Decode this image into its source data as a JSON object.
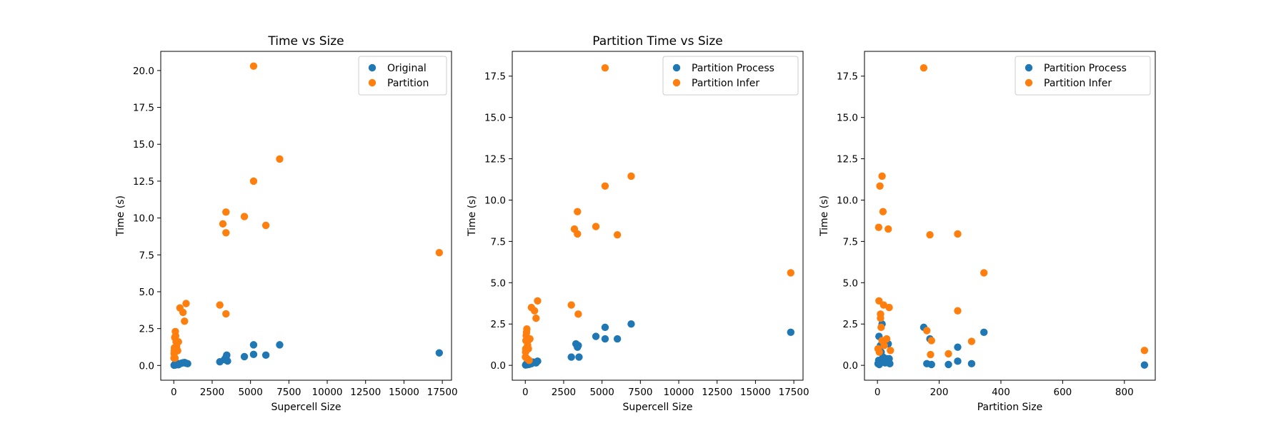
{
  "colors": {
    "blue": "#1f77b4",
    "orange": "#ff7f0e"
  },
  "chart_data": [
    {
      "type": "scatter",
      "title": "Time vs Size",
      "xlabel": "Supercell Size",
      "ylabel": "Time (s)",
      "xlim": [
        -850,
        18100
      ],
      "ylim": [
        -1.0,
        21.3
      ],
      "xticks": [
        0,
        2500,
        5000,
        7500,
        10000,
        12500,
        15000,
        17500
      ],
      "xtick_labels": [
        "0",
        "2500",
        "5000",
        "7500",
        "10000",
        "12500",
        "15000",
        "17500"
      ],
      "yticks": [
        0.0,
        2.5,
        5.0,
        7.5,
        10.0,
        12.5,
        15.0,
        17.5,
        20.0
      ],
      "ytick_labels": [
        "0.0",
        "2.5",
        "5.0",
        "7.5",
        "10.0",
        "12.5",
        "15.0",
        "17.5",
        "20.0"
      ],
      "legend": "top-right",
      "series": [
        {
          "name": "Original",
          "color": "#1f77b4",
          "points": [
            [
              20,
              0.02
            ],
            [
              50,
              0.05
            ],
            [
              80,
              0.08
            ],
            [
              100,
              0.1
            ],
            [
              120,
              0.04
            ],
            [
              150,
              0.12
            ],
            [
              180,
              0.06
            ],
            [
              200,
              0.15
            ],
            [
              250,
              0.08
            ],
            [
              300,
              0.05
            ],
            [
              400,
              0.12
            ],
            [
              500,
              0.15
            ],
            [
              600,
              0.18
            ],
            [
              700,
              0.2
            ],
            [
              800,
              0.15
            ],
            [
              900,
              0.12
            ],
            [
              3000,
              0.25
            ],
            [
              3300,
              0.4
            ],
            [
              3400,
              0.55
            ],
            [
              3450,
              0.7
            ],
            [
              3500,
              0.3
            ],
            [
              4600,
              0.6
            ],
            [
              5200,
              0.75
            ],
            [
              5200,
              1.4
            ],
            [
              6000,
              0.7
            ],
            [
              6900,
              1.4
            ],
            [
              17300,
              0.85
            ]
          ]
        },
        {
          "name": "Partition",
          "color": "#ff7f0e",
          "points": [
            [
              10,
              0.5
            ],
            [
              20,
              0.8
            ],
            [
              30,
              1.0
            ],
            [
              40,
              1.2
            ],
            [
              60,
              1.9
            ],
            [
              80,
              0.5
            ],
            [
              100,
              2.3
            ],
            [
              120,
              2.0
            ],
            [
              150,
              1.6
            ],
            [
              180,
              1.3
            ],
            [
              200,
              1.1
            ],
            [
              250,
              1.0
            ],
            [
              300,
              1.6
            ],
            [
              400,
              3.9
            ],
            [
              600,
              3.6
            ],
            [
              700,
              3.0
            ],
            [
              800,
              4.2
            ],
            [
              3000,
              4.1
            ],
            [
              3200,
              9.6
            ],
            [
              3400,
              10.4
            ],
            [
              3400,
              9.0
            ],
            [
              3400,
              3.5
            ],
            [
              4600,
              10.1
            ],
            [
              5200,
              20.3
            ],
            [
              5200,
              12.5
            ],
            [
              6000,
              9.5
            ],
            [
              6900,
              14.0
            ],
            [
              17300,
              7.65
            ]
          ]
        }
      ]
    },
    {
      "type": "scatter",
      "title": "Partition Time vs Size",
      "xlabel": "Supercell Size",
      "ylabel": "Time (s)",
      "xlim": [
        -850,
        18100
      ],
      "ylim": [
        -0.9,
        19.0
      ],
      "xticks": [
        0,
        2500,
        5000,
        7500,
        10000,
        12500,
        15000,
        17500
      ],
      "xtick_labels": [
        "0",
        "2500",
        "5000",
        "7500",
        "10000",
        "12500",
        "15000",
        "17500"
      ],
      "yticks": [
        0.0,
        2.5,
        5.0,
        7.5,
        10.0,
        12.5,
        15.0,
        17.5
      ],
      "ytick_labels": [
        "0.0",
        "2.5",
        "5.0",
        "7.5",
        "10.0",
        "12.5",
        "15.0",
        "17.5"
      ],
      "legend": "top-right",
      "series": [
        {
          "name": "Partition Process",
          "color": "#1f77b4",
          "points": [
            [
              20,
              0.02
            ],
            [
              50,
              0.05
            ],
            [
              80,
              0.08
            ],
            [
              100,
              0.1
            ],
            [
              150,
              0.04
            ],
            [
              200,
              0.12
            ],
            [
              250,
              0.06
            ],
            [
              300,
              0.15
            ],
            [
              400,
              0.1
            ],
            [
              500,
              0.2
            ],
            [
              700,
              0.15
            ],
            [
              800,
              0.25
            ],
            [
              3000,
              0.5
            ],
            [
              3300,
              1.3
            ],
            [
              3400,
              1.1
            ],
            [
              3450,
              1.2
            ],
            [
              3500,
              0.5
            ],
            [
              4600,
              1.75
            ],
            [
              5200,
              2.3
            ],
            [
              5200,
              1.6
            ],
            [
              6000,
              1.6
            ],
            [
              6900,
              2.5
            ],
            [
              17300,
              2.0
            ]
          ]
        },
        {
          "name": "Partition Infer",
          "color": "#ff7f0e",
          "points": [
            [
              10,
              0.5
            ],
            [
              20,
              0.8
            ],
            [
              30,
              1.0
            ],
            [
              40,
              1.5
            ],
            [
              60,
              1.8
            ],
            [
              80,
              2.0
            ],
            [
              100,
              2.2
            ],
            [
              120,
              0.4
            ],
            [
              150,
              1.2
            ],
            [
              180,
              1.5
            ],
            [
              200,
              1.0
            ],
            [
              250,
              0.3
            ],
            [
              300,
              1.6
            ],
            [
              400,
              3.5
            ],
            [
              600,
              3.3
            ],
            [
              700,
              2.85
            ],
            [
              800,
              3.9
            ],
            [
              3000,
              3.65
            ],
            [
              3200,
              8.25
            ],
            [
              3400,
              9.3
            ],
            [
              3400,
              7.95
            ],
            [
              3450,
              3.1
            ],
            [
              4600,
              8.4
            ],
            [
              5200,
              18.0
            ],
            [
              5200,
              10.85
            ],
            [
              6000,
              7.9
            ],
            [
              6900,
              11.45
            ],
            [
              17300,
              5.6
            ]
          ]
        }
      ]
    },
    {
      "type": "scatter",
      "title": "",
      "xlabel": "Partition Size",
      "ylabel": "Time (s)",
      "xlim": [
        -42,
        900
      ],
      "ylim": [
        -0.9,
        19.0
      ],
      "xticks": [
        0,
        200,
        400,
        600,
        800
      ],
      "xtick_labels": [
        "0",
        "200",
        "400",
        "600",
        "800"
      ],
      "yticks": [
        0.0,
        2.5,
        5.0,
        7.5,
        10.0,
        12.5,
        15.0,
        17.5
      ],
      "ytick_labels": [
        "0.0",
        "2.5",
        "5.0",
        "7.5",
        "10.0",
        "12.5",
        "15.0",
        "17.5"
      ],
      "legend": "top-right",
      "series": [
        {
          "name": "Partition Process",
          "color": "#1f77b4",
          "points": [
            [
              2,
              0.1
            ],
            [
              4,
              0.3
            ],
            [
              5,
              1.75
            ],
            [
              6,
              0.05
            ],
            [
              8,
              0.2
            ],
            [
              10,
              1.2
            ],
            [
              12,
              0.8
            ],
            [
              15,
              2.5
            ],
            [
              18,
              0.5
            ],
            [
              20,
              0.3
            ],
            [
              25,
              0.15
            ],
            [
              30,
              0.4
            ],
            [
              35,
              1.3
            ],
            [
              38,
              0.4
            ],
            [
              40,
              0.1
            ],
            [
              150,
              2.3
            ],
            [
              160,
              0.1
            ],
            [
              170,
              1.6
            ],
            [
              175,
              0.05
            ],
            [
              230,
              0.05
            ],
            [
              260,
              1.1
            ],
            [
              260,
              0.25
            ],
            [
              305,
              0.1
            ],
            [
              345,
              2.0
            ],
            [
              865,
              0.02
            ]
          ]
        },
        {
          "name": "Partition Infer",
          "color": "#ff7f0e",
          "points": [
            [
              2,
              1.0
            ],
            [
              4,
              8.35
            ],
            [
              5,
              3.9
            ],
            [
              6,
              0.8
            ],
            [
              8,
              10.85
            ],
            [
              10,
              3.1
            ],
            [
              10,
              2.85
            ],
            [
              12,
              2.3
            ],
            [
              15,
              11.45
            ],
            [
              15,
              1.5
            ],
            [
              18,
              9.3
            ],
            [
              20,
              3.65
            ],
            [
              22,
              1.2
            ],
            [
              30,
              1.6
            ],
            [
              35,
              8.25
            ],
            [
              38,
              3.5
            ],
            [
              42,
              0.9
            ],
            [
              150,
              18.0
            ],
            [
              160,
              2.1
            ],
            [
              170,
              7.9
            ],
            [
              172,
              0.65
            ],
            [
              175,
              1.5
            ],
            [
              230,
              0.7
            ],
            [
              260,
              7.95
            ],
            [
              260,
              3.3
            ],
            [
              305,
              1.45
            ],
            [
              345,
              5.6
            ],
            [
              865,
              0.9
            ]
          ]
        }
      ]
    }
  ]
}
